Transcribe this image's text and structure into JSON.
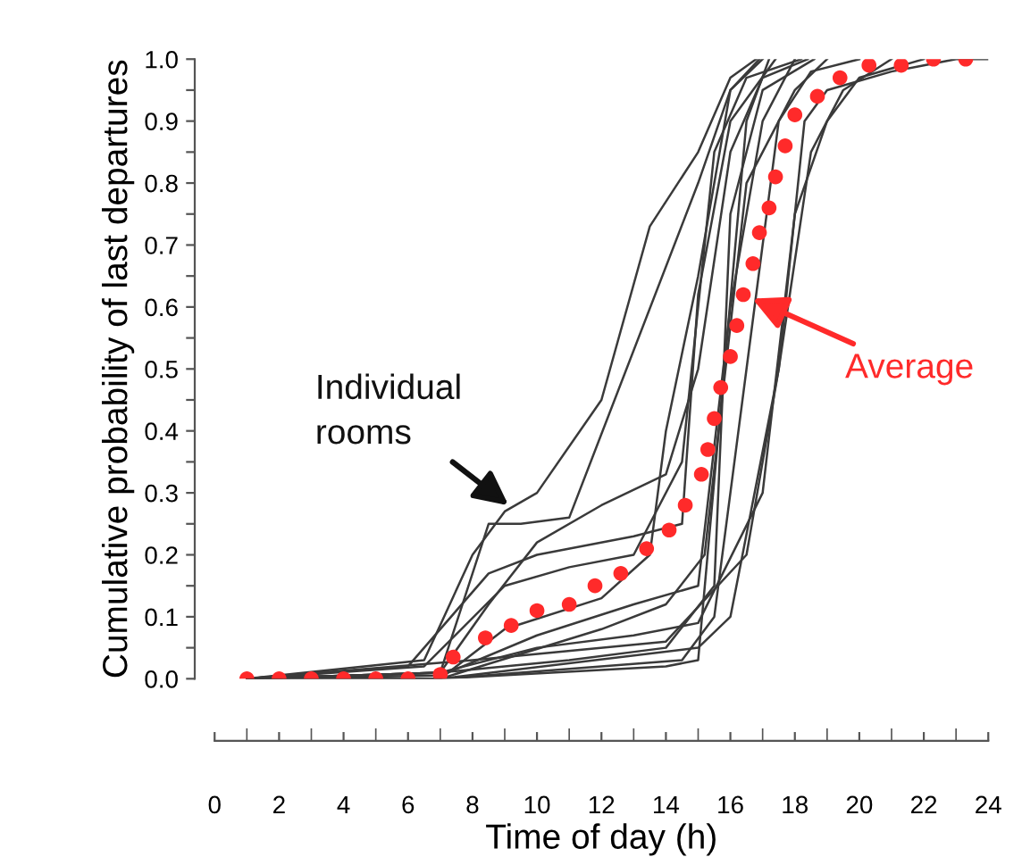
{
  "chart_data": {
    "type": "line",
    "xlabel": "Time of day (h)",
    "ylabel": "Cumulative probability of last departures",
    "xlim": [
      0,
      24
    ],
    "ylim": [
      0,
      1
    ],
    "xticks": [
      0,
      2,
      4,
      6,
      8,
      10,
      12,
      14,
      16,
      18,
      20,
      22,
      24
    ],
    "yticks": [
      {
        "value": 0,
        "label": "0.0"
      },
      {
        "value": 0.05,
        "label": null
      },
      {
        "value": 0.1,
        "label": "0.1"
      },
      {
        "value": 0.15,
        "label": null
      },
      {
        "value": 0.2,
        "label": "0.2"
      },
      {
        "value": 0.25,
        "label": null
      },
      {
        "value": 0.3,
        "label": "0.3"
      },
      {
        "value": 0.35,
        "label": null
      },
      {
        "value": 0.4,
        "label": "0.4"
      },
      {
        "value": 0.45,
        "label": null
      },
      {
        "value": 0.5,
        "label": "0.5"
      },
      {
        "value": 0.55,
        "label": null
      },
      {
        "value": 0.6,
        "label": "0.6"
      },
      {
        "value": 0.65,
        "label": null
      },
      {
        "value": 0.7,
        "label": "0.7"
      },
      {
        "value": 0.75,
        "label": null
      },
      {
        "value": 0.8,
        "label": "0.8"
      },
      {
        "value": 0.85,
        "label": null
      },
      {
        "value": 0.9,
        "label": "0.9"
      },
      {
        "value": 0.95,
        "label": null
      },
      {
        "value": 1.0,
        "label": "1.0"
      }
    ],
    "grid": false,
    "annotations": [
      "Individual\nrooms",
      {
        "text": "Average",
        "x": 16.4,
        "y": 0.62
      }
    ],
    "series": [
      {
        "color": "#3a3a3a",
        "marker": "none",
        "line_style": "solid",
        "x": [
          1,
          6.5,
          8,
          9,
          10,
          12,
          13.5,
          15,
          16,
          16.8
        ],
        "values": [
          0,
          0.03,
          0.2,
          0.27,
          0.3,
          0.45,
          0.73,
          0.85,
          0.97,
          1
        ]
      },
      {
        "color": "#3a3a3a",
        "marker": "none",
        "line_style": "solid",
        "x": [
          1,
          7,
          8.5,
          9.5,
          11,
          15,
          16,
          17
        ],
        "values": [
          0,
          0.01,
          0.25,
          0.25,
          0.26,
          0.8,
          0.95,
          1
        ]
      },
      {
        "color": "#3a3a3a",
        "marker": "none",
        "line_style": "solid",
        "x": [
          1,
          7,
          14,
          15,
          16.5,
          17.2
        ],
        "values": [
          0,
          0,
          0.02,
          0.03,
          0.9,
          1
        ]
      },
      {
        "color": "#3a3a3a",
        "marker": "none",
        "line_style": "solid",
        "x": [
          1,
          7,
          15,
          16,
          17.5,
          18.5,
          19.5,
          21
        ],
        "values": [
          0,
          0,
          0.05,
          0.1,
          0.5,
          0.85,
          0.95,
          1
        ]
      },
      {
        "color": "#3a3a3a",
        "marker": "none",
        "line_style": "solid",
        "x": [
          1,
          7,
          10,
          13,
          15,
          16,
          17,
          18
        ],
        "values": [
          0,
          0.005,
          0.07,
          0.12,
          0.15,
          0.6,
          0.9,
          1
        ]
      },
      {
        "color": "#3a3a3a",
        "marker": "none",
        "line_style": "solid",
        "x": [
          1,
          6.5,
          9,
          11,
          13,
          14.5,
          15.5,
          16.5,
          18.2
        ],
        "values": [
          0,
          0.02,
          0.15,
          0.18,
          0.2,
          0.35,
          0.85,
          0.97,
          1
        ]
      },
      {
        "color": "#3a3a3a",
        "marker": "none",
        "line_style": "solid",
        "x": [
          1,
          7,
          12,
          14,
          15.2,
          16.5,
          18,
          19
        ],
        "values": [
          0,
          0,
          0.08,
          0.12,
          0.2,
          0.8,
          0.95,
          1
        ]
      },
      {
        "color": "#3a3a3a",
        "marker": "none",
        "line_style": "solid",
        "x": [
          1,
          7,
          10,
          13,
          15,
          17,
          18,
          19,
          20,
          22
        ],
        "values": [
          0,
          0.01,
          0.05,
          0.07,
          0.09,
          0.3,
          0.75,
          0.9,
          0.97,
          1
        ]
      },
      {
        "color": "#3a3a3a",
        "marker": "none",
        "line_style": "solid",
        "x": [
          1,
          7,
          9,
          12,
          13.5,
          14,
          15,
          16,
          16.9
        ],
        "values": [
          0,
          0,
          0.08,
          0.13,
          0.2,
          0.4,
          0.65,
          0.95,
          1
        ]
      },
      {
        "color": "#3a3a3a",
        "marker": "none",
        "line_style": "solid",
        "x": [
          1,
          7,
          8.5,
          10,
          12,
          14,
          15,
          16,
          17,
          18.4
        ],
        "values": [
          0,
          0.01,
          0.12,
          0.22,
          0.28,
          0.33,
          0.5,
          0.85,
          0.97,
          1
        ]
      },
      {
        "color": "#3a3a3a",
        "marker": "none",
        "line_style": "solid",
        "x": [
          1,
          6,
          8.5,
          10,
          13,
          14.5,
          15,
          16,
          17.4
        ],
        "values": [
          0,
          0.02,
          0.17,
          0.2,
          0.23,
          0.25,
          0.62,
          0.9,
          1
        ]
      },
      {
        "color": "#3a3a3a",
        "marker": "none",
        "line_style": "solid",
        "x": [
          1,
          7,
          14.5,
          15.5,
          16.5,
          17.5,
          18.5,
          20
        ],
        "values": [
          0,
          0,
          0.03,
          0.1,
          0.5,
          0.9,
          0.98,
          1
        ]
      },
      {
        "color": "#3a3a3a",
        "marker": "none",
        "line_style": "solid",
        "x": [
          1,
          7,
          11,
          14,
          15.5,
          16,
          17,
          18.6
        ],
        "values": [
          0,
          0.01,
          0.03,
          0.05,
          0.15,
          0.75,
          0.95,
          1
        ]
      },
      {
        "color": "#3a3a3a",
        "marker": "none",
        "line_style": "solid",
        "x": [
          1,
          8,
          14,
          16.5,
          17.5,
          18.3,
          19,
          21,
          22,
          23,
          24
        ],
        "values": [
          0,
          0.03,
          0.06,
          0.2,
          0.5,
          0.9,
          0.95,
          0.98,
          0.99,
          1,
          1
        ]
      },
      {
        "type": "scatter",
        "color": "#ff2a2a",
        "marker": "circle",
        "x": [
          1,
          2,
          3,
          4,
          5,
          6,
          7,
          7.4,
          8.4,
          9.2,
          10.0,
          11.0,
          11.8,
          12.6,
          13.4,
          14.1,
          14.6,
          15.1,
          15.3,
          15.5,
          15.7,
          16.0,
          16.2,
          16.4,
          16.7,
          16.9,
          17.2,
          17.4,
          17.7,
          18.0,
          18.7,
          19.4,
          20.3,
          21.3,
          22.3,
          23.3
        ],
        "values": [
          0,
          0,
          0,
          0,
          0,
          0,
          0.007,
          0.035,
          0.066,
          0.086,
          0.11,
          0.12,
          0.15,
          0.17,
          0.21,
          0.24,
          0.28,
          0.33,
          0.37,
          0.42,
          0.47,
          0.52,
          0.57,
          0.62,
          0.67,
          0.72,
          0.76,
          0.81,
          0.86,
          0.91,
          0.94,
          0.97,
          0.99,
          0.99,
          1.0,
          1.0
        ]
      }
    ]
  }
}
